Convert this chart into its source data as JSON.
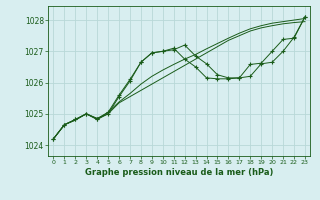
{
  "background_color": "#d8eef0",
  "grid_color": "#b8d8d8",
  "line_color": "#1a5c1a",
  "title": "Graphe pression niveau de la mer (hPa)",
  "ylabel_values": [
    1024,
    1025,
    1026,
    1027,
    1028
  ],
  "xlim": [
    -0.5,
    23.5
  ],
  "ylim": [
    1023.65,
    1028.45
  ],
  "x_ticks": [
    0,
    1,
    2,
    3,
    4,
    5,
    6,
    7,
    8,
    9,
    10,
    11,
    12,
    13,
    14,
    15,
    16,
    17,
    18,
    19,
    20,
    21,
    22,
    23
  ],
  "series": [
    {
      "x": [
        0,
        1,
        2,
        3,
        4,
        5,
        6,
        7,
        8,
        9,
        10,
        11,
        12,
        13,
        14,
        15,
        16,
        17,
        18,
        19,
        20,
        21,
        22,
        23
      ],
      "y": [
        1024.2,
        1024.65,
        1024.8,
        1025.0,
        1024.85,
        1025.0,
        1025.35,
        1025.55,
        1025.75,
        1025.95,
        1026.15,
        1026.35,
        1026.55,
        1026.75,
        1026.95,
        1027.15,
        1027.35,
        1027.5,
        1027.65,
        1027.75,
        1027.82,
        1027.88,
        1027.92,
        1027.95
      ],
      "style": "line_only"
    },
    {
      "x": [
        0,
        1,
        2,
        3,
        4,
        5,
        6,
        7,
        8,
        9,
        10,
        11,
        12,
        13,
        14,
        15,
        16,
        17,
        18,
        19,
        20,
        21,
        22,
        23
      ],
      "y": [
        1024.2,
        1024.65,
        1024.8,
        1025.0,
        1024.85,
        1025.05,
        1025.38,
        1025.65,
        1025.95,
        1026.2,
        1026.4,
        1026.58,
        1026.75,
        1026.9,
        1027.08,
        1027.25,
        1027.42,
        1027.58,
        1027.72,
        1027.82,
        1027.9,
        1027.95,
        1028.0,
        1028.05
      ],
      "style": "line_only"
    },
    {
      "x": [
        0,
        1,
        2,
        3,
        4,
        5,
        6,
        7,
        8,
        9,
        10,
        11,
        12,
        13,
        14,
        15,
        16,
        17,
        18,
        19,
        20,
        21,
        22,
        23
      ],
      "y": [
        1024.2,
        1024.65,
        1024.82,
        1025.0,
        1024.82,
        1025.0,
        1025.55,
        1026.05,
        1026.65,
        1026.95,
        1027.0,
        1027.05,
        1027.2,
        1026.85,
        1026.6,
        1026.25,
        1026.15,
        1026.15,
        1026.2,
        1026.6,
        1026.65,
        1027.0,
        1027.45,
        1028.1
      ],
      "style": "line_markers"
    },
    {
      "x": [
        0,
        1,
        2,
        3,
        4,
        5,
        6,
        7,
        8,
        9,
        10,
        11,
        12,
        13,
        14,
        15,
        16,
        17,
        18,
        19,
        20,
        21,
        22,
        23
      ],
      "y": [
        1024.2,
        1024.65,
        1024.82,
        1025.0,
        1024.82,
        1025.05,
        1025.6,
        1026.1,
        1026.65,
        1026.95,
        1027.0,
        1027.1,
        1026.75,
        1026.5,
        1026.15,
        1026.12,
        1026.12,
        1026.15,
        1026.58,
        1026.62,
        1027.0,
        1027.38,
        1027.42,
        1028.1
      ],
      "style": "line_markers"
    }
  ]
}
